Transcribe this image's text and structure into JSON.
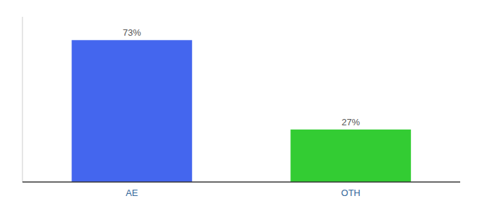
{
  "chart_data": {
    "type": "bar",
    "categories": [
      "AE",
      "OTH"
    ],
    "values": [
      73,
      27
    ],
    "value_labels": [
      "73%",
      "27%"
    ],
    "colors": [
      "#4466ee",
      "#33cc33"
    ],
    "ylim": [
      0,
      85
    ],
    "data_labels": true,
    "tick_labels": "x",
    "grid": false
  }
}
